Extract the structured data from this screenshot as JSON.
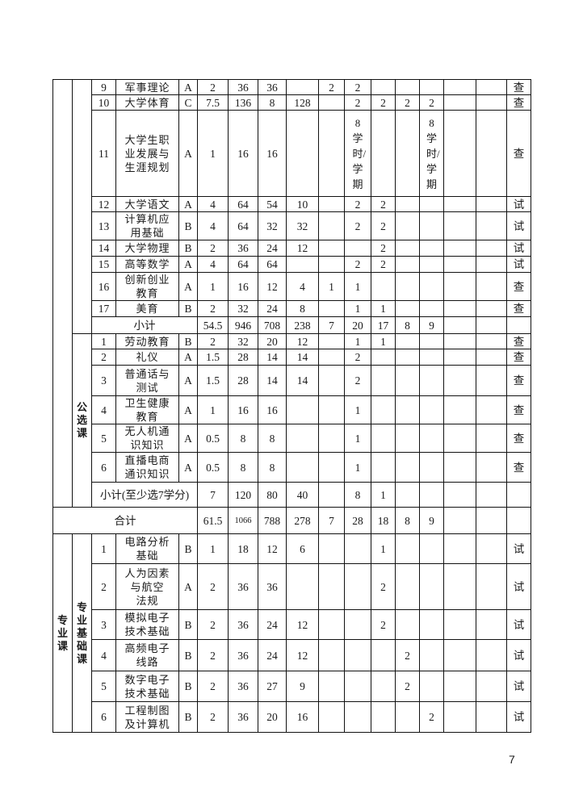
{
  "required": {
    "rows": [
      [
        "9",
        "军事理论",
        "A",
        "2",
        "36",
        "36",
        "",
        "2",
        "2",
        "",
        "",
        "",
        "",
        "",
        "查"
      ],
      [
        "10",
        "大学体育",
        "C",
        "7.5",
        "136",
        "8",
        "128",
        "",
        "2",
        "2",
        "2",
        "2",
        "",
        "",
        "查"
      ],
      [
        "11",
        "大学生职业发展与生涯规划",
        "A",
        "1",
        "16",
        "16",
        "",
        "",
        "8学时/学期",
        "",
        "",
        "8学时/学期",
        "",
        "",
        "查"
      ],
      [
        "12",
        "大学语文",
        "A",
        "4",
        "64",
        "54",
        "10",
        "",
        "2",
        "2",
        "",
        "",
        "",
        "",
        "试"
      ],
      [
        "13",
        "计算机应用基础",
        "B",
        "4",
        "64",
        "32",
        "32",
        "",
        "2",
        "2",
        "",
        "",
        "",
        "",
        "试"
      ],
      [
        "14",
        "大学物理",
        "B",
        "2",
        "36",
        "24",
        "12",
        "",
        "",
        "2",
        "",
        "",
        "",
        "",
        "试"
      ],
      [
        "15",
        "高等数学",
        "A",
        "4",
        "64",
        "64",
        "",
        "",
        "2",
        "2",
        "",
        "",
        "",
        "",
        "试"
      ],
      [
        "16",
        "创新创业教育",
        "A",
        "1",
        "16",
        "12",
        "4",
        "1",
        "1",
        "",
        "",
        "",
        "",
        "",
        "查"
      ],
      [
        "17",
        "美育",
        "B",
        "2",
        "32",
        "24",
        "8",
        "",
        "1",
        "1",
        "",
        "",
        "",
        "",
        "查"
      ]
    ],
    "subtotal": {
      "label": "小计",
      "values": [
        "54.5",
        "946",
        "708",
        "238",
        "7",
        "20",
        "17",
        "8",
        "9",
        "",
        "",
        ""
      ]
    }
  },
  "elective": {
    "category": "公选课",
    "rows": [
      [
        "1",
        "劳动教育",
        "B",
        "2",
        "32",
        "20",
        "12",
        "",
        "1",
        "1",
        "",
        "",
        "",
        "",
        "查"
      ],
      [
        "2",
        "礼仪",
        "A",
        "1.5",
        "28",
        "14",
        "14",
        "",
        "2",
        "",
        "",
        "",
        "",
        "",
        "查"
      ],
      [
        "3",
        "普通话与测试",
        "A",
        "1.5",
        "28",
        "14",
        "14",
        "",
        "2",
        "",
        "",
        "",
        "",
        "",
        "查"
      ],
      [
        "4",
        "卫生健康教育",
        "A",
        "1",
        "16",
        "16",
        "",
        "",
        "1",
        "",
        "",
        "",
        "",
        "",
        "查"
      ],
      [
        "5",
        "无人机通识知识",
        "A",
        "0.5",
        "8",
        "8",
        "",
        "",
        "1",
        "",
        "",
        "",
        "",
        "",
        "查"
      ],
      [
        "6",
        "直播电商通识知识",
        "A",
        "0.5",
        "8",
        "8",
        "",
        "",
        "1",
        "",
        "",
        "",
        "",
        "",
        "查"
      ]
    ],
    "subtotal": {
      "label": "小计(至少选7学分)",
      "values": [
        "7",
        "120",
        "80",
        "40",
        "",
        "8",
        "1",
        "",
        "",
        "",
        "",
        ""
      ]
    }
  },
  "total": {
    "label": "合计",
    "values": [
      "61.5",
      "1066",
      "788",
      "278",
      "7",
      "28",
      "18",
      "8",
      "9",
      "",
      "",
      ""
    ]
  },
  "professional": {
    "category": "专业课",
    "subcategory": "专业基础课",
    "rows": [
      [
        "1",
        "电路分析基础",
        "B",
        "1",
        "18",
        "12",
        "6",
        "",
        "",
        "1",
        "",
        "",
        "",
        "",
        "试"
      ],
      [
        "2",
        "人为因素\n与航空\n法规",
        "A",
        "2",
        "36",
        "36",
        "",
        "",
        "",
        "2",
        "",
        "",
        "",
        "",
        "试"
      ],
      [
        "3",
        "模拟电子技术基础",
        "B",
        "2",
        "36",
        "24",
        "12",
        "",
        "",
        "2",
        "",
        "",
        "",
        "",
        "试"
      ],
      [
        "4",
        "高频电子线路",
        "B",
        "2",
        "36",
        "24",
        "12",
        "",
        "",
        "",
        "2",
        "",
        "",
        "",
        "试"
      ],
      [
        "5",
        "数字电子技术基础",
        "B",
        "2",
        "36",
        "27",
        "9",
        "",
        "",
        "",
        "2",
        "",
        "",
        "",
        "试"
      ],
      [
        "6",
        "工程制图及计算机",
        "B",
        "2",
        "36",
        "20",
        "16",
        "",
        "",
        "",
        "",
        "2",
        "",
        "",
        "试"
      ]
    ]
  },
  "page_number": "7"
}
